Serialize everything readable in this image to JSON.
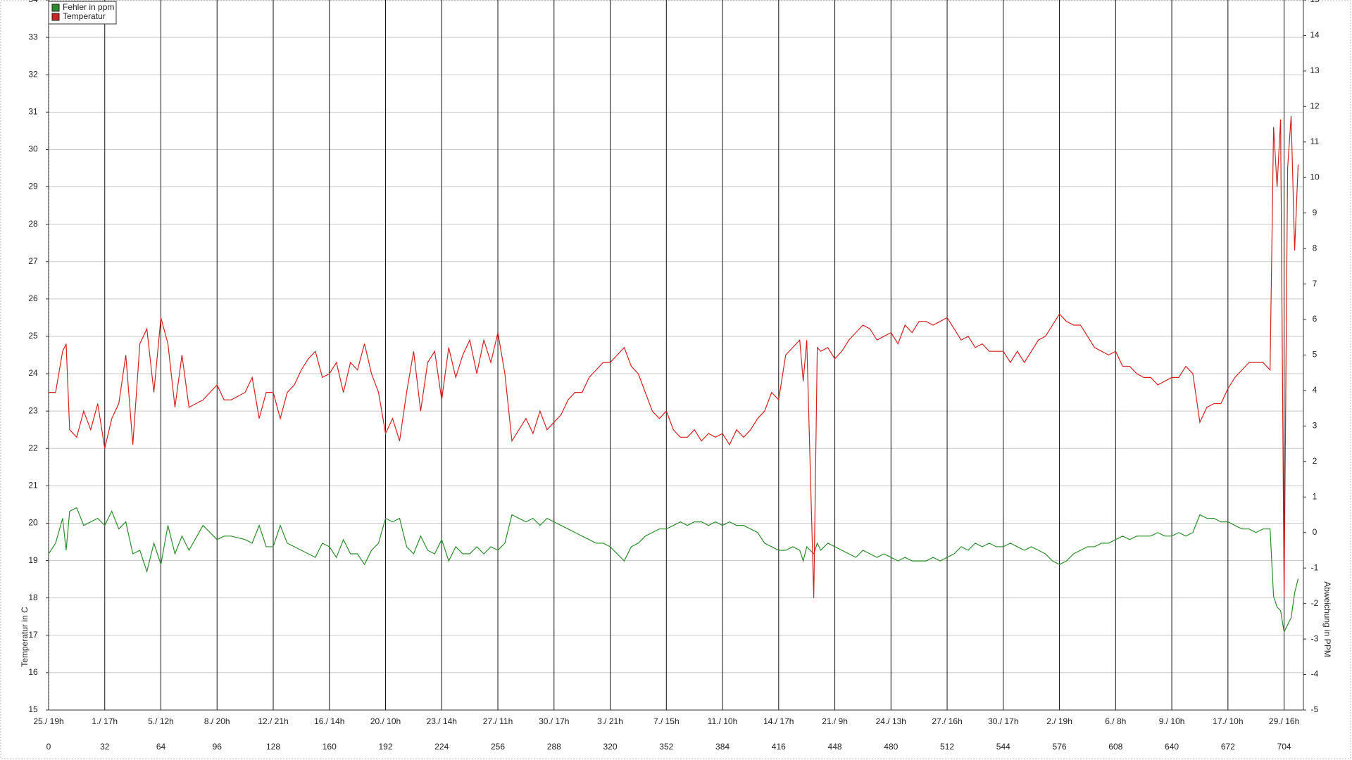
{
  "chart_data": {
    "type": "line",
    "y_label": "Temperatur in C",
    "y2_label": "Abweichung in PPM",
    "xlim": [
      0,
      715
    ],
    "ylim": [
      15,
      34
    ],
    "y2lim": [
      -5,
      15
    ],
    "xticks": [
      {
        "value": 0,
        "label": "25./ 19h"
      },
      {
        "value": 32,
        "label": "1./ 17h"
      },
      {
        "value": 64,
        "label": "5./ 12h"
      },
      {
        "value": 96,
        "label": "8./ 20h"
      },
      {
        "value": 128,
        "label": "12./ 21h"
      },
      {
        "value": 160,
        "label": "16./ 14h"
      },
      {
        "value": 192,
        "label": "20./ 10h"
      },
      {
        "value": 224,
        "label": "23./ 14h"
      },
      {
        "value": 256,
        "label": "27./ 11h"
      },
      {
        "value": 288,
        "label": "30./ 17h"
      },
      {
        "value": 320,
        "label": "3./ 21h"
      },
      {
        "value": 352,
        "label": "7./ 15h"
      },
      {
        "value": 384,
        "label": "11./ 10h"
      },
      {
        "value": 416,
        "label": "14./ 17h"
      },
      {
        "value": 448,
        "label": "21./ 9h"
      },
      {
        "value": 480,
        "label": "24./ 13h"
      },
      {
        "value": 512,
        "label": "27./ 16h"
      },
      {
        "value": 544,
        "label": "30./ 17h"
      },
      {
        "value": 576,
        "label": "2./ 19h"
      },
      {
        "value": 608,
        "label": "6./ 8h"
      },
      {
        "value": 640,
        "label": "9./ 10h"
      },
      {
        "value": 672,
        "label": "17./ 10h"
      },
      {
        "value": 704,
        "label": "29./ 16h"
      }
    ],
    "yticks": [
      15,
      16,
      17,
      18,
      19,
      20,
      21,
      22,
      23,
      24,
      25,
      26,
      27,
      28,
      29,
      30,
      31,
      32,
      33,
      34
    ],
    "y2ticks": [
      -5,
      -4,
      -3,
      -2,
      -1,
      0,
      1,
      2,
      3,
      4,
      5,
      6,
      7,
      8,
      9,
      10,
      11,
      12,
      13,
      14,
      15
    ],
    "grid": true,
    "x": [
      0,
      4,
      8,
      10,
      12,
      16,
      20,
      24,
      28,
      32,
      36,
      40,
      44,
      48,
      52,
      56,
      60,
      64,
      68,
      72,
      76,
      80,
      88,
      96,
      100,
      104,
      112,
      116,
      120,
      124,
      128,
      132,
      136,
      140,
      144,
      148,
      152,
      156,
      160,
      164,
      168,
      172,
      176,
      180,
      184,
      188,
      192,
      196,
      200,
      204,
      208,
      212,
      216,
      220,
      224,
      228,
      232,
      236,
      240,
      244,
      248,
      252,
      256,
      260,
      264,
      268,
      272,
      276,
      280,
      284,
      288,
      292,
      296,
      300,
      304,
      308,
      312,
      316,
      320,
      324,
      328,
      332,
      336,
      340,
      344,
      348,
      352,
      356,
      360,
      364,
      368,
      372,
      376,
      380,
      384,
      388,
      392,
      396,
      400,
      404,
      408,
      412,
      416,
      420,
      424,
      428,
      430,
      432,
      436,
      438,
      440,
      444,
      448,
      452,
      456,
      460,
      464,
      468,
      472,
      476,
      480,
      484,
      488,
      492,
      496,
      500,
      504,
      508,
      512,
      516,
      520,
      524,
      528,
      532,
      536,
      540,
      544,
      548,
      552,
      556,
      560,
      564,
      568,
      572,
      576,
      580,
      584,
      588,
      592,
      596,
      600,
      604,
      608,
      612,
      616,
      620,
      624,
      628,
      632,
      636,
      640,
      644,
      648,
      652,
      656,
      660,
      664,
      668,
      672,
      676,
      680,
      684,
      688,
      692,
      696,
      698,
      700,
      702,
      704,
      706,
      708,
      710,
      712
    ],
    "series": [
      {
        "name": "Fehler in ppm",
        "color": "#2e8b2e",
        "axis": "y2",
        "values": [
          -0.6,
          -0.3,
          0.4,
          -0.5,
          0.6,
          0.7,
          0.2,
          0.3,
          0.4,
          0.2,
          0.6,
          0.1,
          0.3,
          -0.6,
          -0.5,
          -1.1,
          -0.3,
          -0.9,
          0.2,
          -0.6,
          -0.1,
          -0.5,
          0.2,
          -0.2,
          -0.1,
          -0.1,
          -0.2,
          -0.3,
          0.2,
          -0.4,
          -0.4,
          0.2,
          -0.3,
          -0.4,
          -0.5,
          -0.6,
          -0.7,
          -0.3,
          -0.4,
          -0.7,
          -0.2,
          -0.6,
          -0.6,
          -0.9,
          -0.5,
          -0.3,
          0.4,
          0.3,
          0.4,
          -0.4,
          -0.6,
          -0.1,
          -0.5,
          -0.6,
          -0.2,
          -0.8,
          -0.4,
          -0.6,
          -0.6,
          -0.4,
          -0.6,
          -0.4,
          -0.5,
          -0.3,
          0.5,
          0.4,
          0.3,
          0.4,
          0.2,
          0.4,
          0.3,
          0.2,
          0.1,
          0.0,
          -0.1,
          -0.2,
          -0.3,
          -0.3,
          -0.4,
          -0.6,
          -0.8,
          -0.4,
          -0.3,
          -0.1,
          0.0,
          0.1,
          0.1,
          0.2,
          0.3,
          0.2,
          0.3,
          0.3,
          0.2,
          0.3,
          0.2,
          0.3,
          0.2,
          0.2,
          0.1,
          0.0,
          -0.3,
          -0.4,
          -0.5,
          -0.5,
          -0.4,
          -0.5,
          -0.8,
          -0.4,
          -0.6,
          -0.3,
          -0.5,
          -0.3,
          -0.4,
          -0.5,
          -0.6,
          -0.7,
          -0.5,
          -0.6,
          -0.7,
          -0.6,
          -0.7,
          -0.8,
          -0.7,
          -0.8,
          -0.8,
          -0.8,
          -0.7,
          -0.8,
          -0.7,
          -0.6,
          -0.4,
          -0.5,
          -0.3,
          -0.4,
          -0.3,
          -0.4,
          -0.4,
          -0.3,
          -0.4,
          -0.5,
          -0.4,
          -0.5,
          -0.6,
          -0.8,
          -0.9,
          -0.8,
          -0.6,
          -0.5,
          -0.4,
          -0.4,
          -0.3,
          -0.3,
          -0.2,
          -0.1,
          -0.2,
          -0.1,
          -0.1,
          -0.1,
          0.0,
          -0.1,
          -0.1,
          0.0,
          -0.1,
          0.0,
          0.5,
          0.4,
          0.4,
          0.3,
          0.3,
          0.2,
          0.1,
          0.1,
          0.0,
          0.1,
          0.1,
          -1.8,
          -2.1,
          -2.2,
          -2.8,
          -2.6,
          -2.4,
          -1.7,
          -1.3
        ]
      },
      {
        "name": "Temperatur",
        "color": "#d42020",
        "values": [
          23.5,
          23.5,
          24.6,
          24.8,
          22.5,
          22.3,
          23,
          22.5,
          23.2,
          22.0,
          22.8,
          23.2,
          24.5,
          22.1,
          24.8,
          25.2,
          23.5,
          25.5,
          24.8,
          23.1,
          24.5,
          23.1,
          23.3,
          23.7,
          23.3,
          23.3,
          23.5,
          23.9,
          22.8,
          23.5,
          23.5,
          22.8,
          23.5,
          23.7,
          24.1,
          24.4,
          24.6,
          23.9,
          24.0,
          24.3,
          23.5,
          24.3,
          24.1,
          24.8,
          24.0,
          23.5,
          22.4,
          22.8,
          22.2,
          23.5,
          24.6,
          23.0,
          24.3,
          24.6,
          23.3,
          24.7,
          23.9,
          24.5,
          24.9,
          24.0,
          24.9,
          24.3,
          25.1,
          24.0,
          22.2,
          22.5,
          22.8,
          22.4,
          23.0,
          22.5,
          22.7,
          22.9,
          23.3,
          23.5,
          23.5,
          23.9,
          24.1,
          24.3,
          24.3,
          24.5,
          24.7,
          24.2,
          24.0,
          23.5,
          23.0,
          22.8,
          23.0,
          22.5,
          22.3,
          22.3,
          22.5,
          22.2,
          22.4,
          22.3,
          22.4,
          22.1,
          22.5,
          22.3,
          22.5,
          22.8,
          23.0,
          23.5,
          23.3,
          24.5,
          24.7,
          24.9,
          23.8,
          24.9,
          18.0,
          24.7,
          24.6,
          24.7,
          24.4,
          24.6,
          24.9,
          25.1,
          25.3,
          25.2,
          24.9,
          25.0,
          25.1,
          24.8,
          25.3,
          25.1,
          25.4,
          25.4,
          25.3,
          25.4,
          25.5,
          25.2,
          24.9,
          25.0,
          24.7,
          24.8,
          24.6,
          24.6,
          24.6,
          24.3,
          24.6,
          24.3,
          24.6,
          24.9,
          25.0,
          25.3,
          25.6,
          25.4,
          25.3,
          25.3,
          25.0,
          24.7,
          24.6,
          24.5,
          24.6,
          24.2,
          24.2,
          24.0,
          23.9,
          23.9,
          23.7,
          23.8,
          23.9,
          23.9,
          24.2,
          24.0,
          22.7,
          23.1,
          23.2,
          23.2,
          23.6,
          23.9,
          24.1,
          24.3,
          24.3,
          24.3,
          24.1,
          30.6,
          29.0,
          30.8,
          18.0,
          29.5,
          30.9,
          27.3,
          29.6
        ]
      }
    ]
  }
}
